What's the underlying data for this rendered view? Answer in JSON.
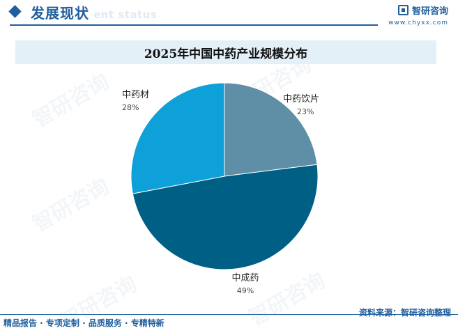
{
  "header": {
    "section_title": "发展现状",
    "section_sub": "ent status",
    "brand_name": "智研咨询",
    "brand_url": "www.chyxx.com"
  },
  "chart_data": {
    "type": "pie",
    "title": "2025年中国中药产业规模分布",
    "slices": [
      {
        "label": "中药饮片",
        "value": 23,
        "pct_label": "23%",
        "color": "#5e8fa6"
      },
      {
        "label": "中成药",
        "value": 49,
        "pct_label": "49%",
        "color": "#005f85"
      },
      {
        "label": "中药材",
        "value": 28,
        "pct_label": "28%",
        "color": "#0ea0d8"
      }
    ]
  },
  "watermark_text": "智研咨询",
  "footer": {
    "left": "精品报告 · 专项定制 · 品质服务 · 专精特新",
    "right": "资料来源：智研咨询整理"
  }
}
